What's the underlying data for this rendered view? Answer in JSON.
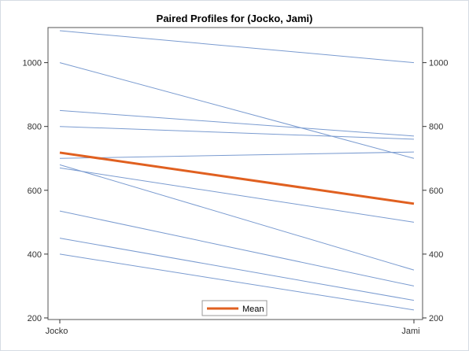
{
  "chart_data": {
    "type": "line",
    "title": "Paired Profiles for (Jocko, Jami)",
    "categories": [
      "Jocko",
      "Jami"
    ],
    "ylim": [
      195,
      1110
    ],
    "yticks": [
      200,
      400,
      600,
      800,
      1000
    ],
    "y_axis_right": true,
    "grid": false,
    "legend": {
      "position": "bottom-center",
      "entries": [
        "Mean"
      ]
    },
    "profiles": [
      [
        1100,
        1000
      ],
      [
        1000,
        700
      ],
      [
        850,
        770
      ],
      [
        800,
        760
      ],
      [
        700,
        720
      ],
      [
        680,
        350
      ],
      [
        670,
        500
      ],
      [
        535,
        300
      ],
      [
        450,
        255
      ],
      [
        400,
        225
      ]
    ],
    "series": [
      {
        "name": "Mean",
        "values": [
          718,
          558
        ]
      }
    ],
    "colors": {
      "profile": "#7a9bd0",
      "mean": "#e06020",
      "axis": "#333333"
    }
  }
}
